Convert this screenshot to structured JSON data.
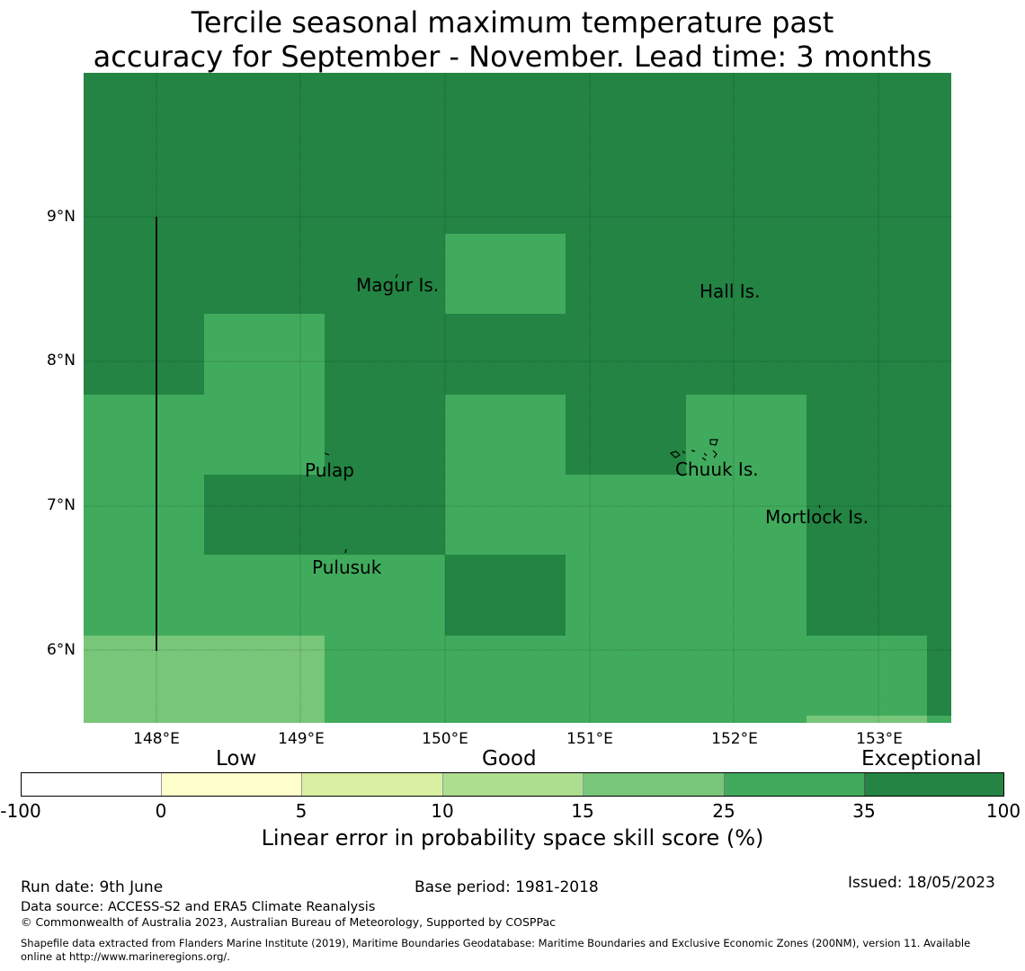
{
  "title_line1": "Tercile seasonal maximum temperature past",
  "title_line2": "accuracy for September - November. Lead time: 3 months",
  "map": {
    "lat_labels": [
      "9°N",
      "8°N",
      "7°N",
      "6°N"
    ],
    "lon_labels": [
      "148°E",
      "149°E",
      "150°E",
      "151°E",
      "152°E",
      "153°E"
    ],
    "places": [
      "Magur Is.",
      "Hall Is.",
      "Pulap",
      "Chuuk Is.",
      "Mortlock Is.",
      "Pulusuk"
    ],
    "colors": {
      "exceptional": "#238443",
      "c25_35": "#41ab5d",
      "c15_25": "#78c679",
      "c10_15": "#addd8e",
      "c5_10": "#d9f0a3",
      "c0_5": "#ffffcc",
      "below0": "#ffffff"
    }
  },
  "legend": {
    "categories": [
      "Low",
      "Good",
      "Exceptional"
    ],
    "ticks": [
      "-100",
      "0",
      "5",
      "10",
      "15",
      "25",
      "35",
      "100"
    ],
    "label": "Linear error in probability space skill score (%)"
  },
  "footer": {
    "run_date": "Run date: 9th June",
    "base_period": "Base period: 1981-2018",
    "issued": "Issued: 18/05/2023",
    "data_source": "Data source: ACCESS-S2 and ERA5 Climate Reanalysis",
    "copyright": "© Commonwealth of Australia 2023, Australian Bureau of Meteorology, Supported by COSPPac",
    "shapefile_line1": "Shapefile data extracted from Flanders Marine Institute (2019), Maritime Boundaries Geodatabase: Maritime Boundaries and Exclusive Economic Zones (200NM), version 11. Available",
    "shapefile_line2": "online at http://www.marineregions.org/."
  }
}
